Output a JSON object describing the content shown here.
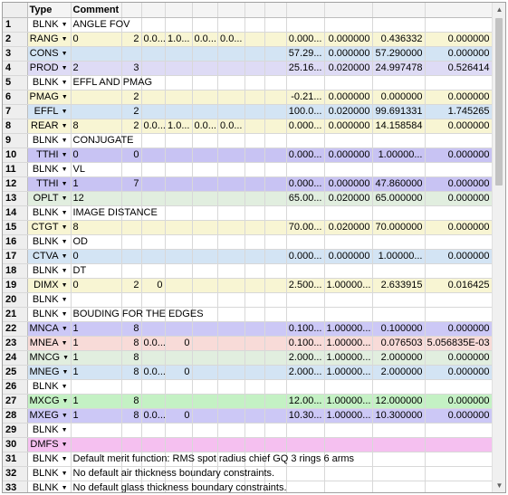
{
  "headers": {
    "type": "Type",
    "comment": "Comment"
  },
  "rows": [
    {
      "n": "1",
      "type": "BLNK",
      "comment": "ANGLE FOV",
      "c": [
        "",
        "",
        "",
        "",
        "",
        "",
        "",
        "",
        "",
        ""
      ],
      "color": "c-w"
    },
    {
      "n": "2",
      "type": "RANG",
      "comment": "0",
      "c": [
        "2",
        "0.0...",
        "1.0...",
        "0.0...",
        "0.0...",
        "",
        "",
        "0.000...",
        "0.000000",
        "0.436332",
        "0.000000"
      ],
      "color": "c-y"
    },
    {
      "n": "3",
      "type": "CONS",
      "comment": "",
      "c": [
        "",
        "",
        "",
        "",
        "",
        "",
        "",
        "57.29...",
        "0.000000",
        "57.290000",
        "0.000000"
      ],
      "color": "c-b"
    },
    {
      "n": "4",
      "type": "PROD",
      "comment": "2",
      "c": [
        "3",
        "",
        "",
        "",
        "",
        "",
        "",
        "25.16...",
        "0.020000",
        "24.997478",
        "0.526414"
      ],
      "color": "c-v"
    },
    {
      "n": "5",
      "type": "BLNK",
      "comment": "EFFL AND PMAG",
      "c": [
        "",
        "",
        "",
        "",
        "",
        "",
        "",
        "",
        "",
        "",
        ""
      ],
      "color": "c-w"
    },
    {
      "n": "6",
      "type": "PMAG",
      "comment": "",
      "c": [
        "2",
        "",
        "",
        "",
        "",
        "",
        "",
        "-0.21...",
        "0.000000",
        "0.000000",
        "0.000000"
      ],
      "color": "c-y"
    },
    {
      "n": "7",
      "type": "EFFL",
      "comment": "",
      "c": [
        "2",
        "",
        "",
        "",
        "",
        "",
        "",
        "100.0...",
        "0.020000",
        "99.691331",
        "1.745265"
      ],
      "color": "c-b"
    },
    {
      "n": "8",
      "type": "REAR",
      "comment": "8",
      "c": [
        "2",
        "0.0...",
        "1.0...",
        "0.0...",
        "0.0...",
        "",
        "",
        "0.000...",
        "0.000000",
        "14.158584",
        "0.000000"
      ],
      "color": "c-y"
    },
    {
      "n": "9",
      "type": "BLNK",
      "comment": "CONJUGATE",
      "c": [
        "",
        "",
        "",
        "",
        "",
        "",
        "",
        "",
        "",
        "",
        ""
      ],
      "color": "c-w"
    },
    {
      "n": "10",
      "type": "TTHI",
      "comment": "0",
      "c": [
        "0",
        "",
        "",
        "",
        "",
        "",
        "",
        "0.000...",
        "0.000000",
        "1.00000...",
        "0.000000"
      ],
      "color": "c-pv"
    },
    {
      "n": "11",
      "type": "BLNK",
      "comment": "VL",
      "c": [
        "",
        "",
        "",
        "",
        "",
        "",
        "",
        "",
        "",
        "",
        ""
      ],
      "color": "c-w"
    },
    {
      "n": "12",
      "type": "TTHI",
      "comment": "1",
      "c": [
        "7",
        "",
        "",
        "",
        "",
        "",
        "",
        "0.000...",
        "0.000000",
        "47.860000",
        "0.000000"
      ],
      "color": "c-pv"
    },
    {
      "n": "13",
      "type": "OPLT",
      "comment": "12",
      "c": [
        "",
        "",
        "",
        "",
        "",
        "",
        "",
        "65.00...",
        "0.020000",
        "65.000000",
        "0.000000"
      ],
      "color": "c-g"
    },
    {
      "n": "14",
      "type": "BLNK",
      "comment": "IMAGE DISTANCE",
      "c": [
        "",
        "",
        "",
        "",
        "",
        "",
        "",
        "",
        "",
        "",
        ""
      ],
      "color": "c-w"
    },
    {
      "n": "15",
      "type": "CTGT",
      "comment": "8",
      "c": [
        "",
        "",
        "",
        "",
        "",
        "",
        "",
        "70.00...",
        "0.020000",
        "70.000000",
        "0.000000"
      ],
      "color": "c-y"
    },
    {
      "n": "16",
      "type": "BLNK",
      "comment": "OD",
      "c": [
        "",
        "",
        "",
        "",
        "",
        "",
        "",
        "",
        "",
        "",
        ""
      ],
      "color": "c-w"
    },
    {
      "n": "17",
      "type": "CTVA",
      "comment": "0",
      "c": [
        "",
        "",
        "",
        "",
        "",
        "",
        "",
        "0.000...",
        "0.000000",
        "1.00000...",
        "0.000000"
      ],
      "color": "c-b"
    },
    {
      "n": "18",
      "type": "BLNK",
      "comment": "DT",
      "c": [
        "",
        "",
        "",
        "",
        "",
        "",
        "",
        "",
        "",
        "",
        ""
      ],
      "color": "c-w"
    },
    {
      "n": "19",
      "type": "DIMX",
      "comment": "0",
      "c": [
        "2",
        "0",
        "",
        "",
        "",
        "",
        "",
        "2.500...",
        "1.00000...",
        "2.633915",
        "0.016425"
      ],
      "color": "c-y"
    },
    {
      "n": "20",
      "type": "BLNK",
      "comment": "",
      "c": [
        "",
        "",
        "",
        "",
        "",
        "",
        "",
        "",
        "",
        "",
        ""
      ],
      "color": "c-w"
    },
    {
      "n": "21",
      "type": "BLNK",
      "comment": "BOUDING FOR THE EDGES",
      "c": [
        "",
        "",
        "",
        "",
        "",
        "",
        "",
        "",
        "",
        "",
        ""
      ],
      "color": "c-w"
    },
    {
      "n": "22",
      "type": "MNCA",
      "comment": "1",
      "c": [
        "8",
        "",
        "",
        "",
        "",
        "",
        "",
        "0.100...",
        "1.00000...",
        "0.100000",
        "0.000000"
      ],
      "color": "c-lv"
    },
    {
      "n": "23",
      "type": "MNEA",
      "comment": "1",
      "c": [
        "8",
        "0.0...",
        "0",
        "",
        "",
        "",
        "",
        "0.100...",
        "1.00000...",
        "0.076503",
        "5.056835E-03"
      ],
      "color": "c-p"
    },
    {
      "n": "24",
      "type": "MNCG",
      "comment": "1",
      "c": [
        "8",
        "",
        "",
        "",
        "",
        "",
        "",
        "2.000...",
        "1.00000...",
        "2.000000",
        "0.000000"
      ],
      "color": "c-g"
    },
    {
      "n": "25",
      "type": "MNEG",
      "comment": "1",
      "c": [
        "8",
        "0.0...",
        "0",
        "",
        "",
        "",
        "",
        "2.000...",
        "1.00000...",
        "2.000000",
        "0.000000"
      ],
      "color": "c-b"
    },
    {
      "n": "26",
      "type": "BLNK",
      "comment": "",
      "c": [
        "",
        "",
        "",
        "",
        "",
        "",
        "",
        "",
        "",
        "",
        ""
      ],
      "color": "c-w"
    },
    {
      "n": "27",
      "type": "MXCG",
      "comment": "1",
      "c": [
        "8",
        "",
        "",
        "",
        "",
        "",
        "",
        "12.00...",
        "1.00000...",
        "12.000000",
        "0.000000"
      ],
      "color": "c-gg"
    },
    {
      "n": "28",
      "type": "MXEG",
      "comment": "1",
      "c": [
        "8",
        "0.0...",
        "0",
        "",
        "",
        "",
        "",
        "10.30...",
        "1.00000...",
        "10.300000",
        "0.000000"
      ],
      "color": "c-lv"
    },
    {
      "n": "29",
      "type": "BLNK",
      "comment": "",
      "c": [
        "",
        "",
        "",
        "",
        "",
        "",
        "",
        "",
        "",
        "",
        ""
      ],
      "color": "c-w"
    },
    {
      "n": "30",
      "type": "DMFS",
      "comment": "",
      "c": [
        "",
        "",
        "",
        "",
        "",
        "",
        "",
        "",
        "",
        "",
        ""
      ],
      "color": "c-m"
    },
    {
      "n": "31",
      "type": "BLNK",
      "comment": "Default merit function: RMS spot radius chief GQ 3 rings 6 arms",
      "c": [
        "",
        "",
        "",
        "",
        "",
        "",
        "",
        "",
        "",
        "",
        ""
      ],
      "color": "c-w"
    },
    {
      "n": "32",
      "type": "BLNK",
      "comment": "No default air thickness boundary constraints.",
      "c": [
        "",
        "",
        "",
        "",
        "",
        "",
        "",
        "",
        "",
        "",
        ""
      ],
      "color": "c-w"
    },
    {
      "n": "33",
      "type": "BLNK",
      "comment": "No default glass thickness boundary constraints.",
      "c": [
        "",
        "",
        "",
        "",
        "",
        "",
        "",
        "",
        "",
        "",
        ""
      ],
      "color": "c-w"
    }
  ]
}
